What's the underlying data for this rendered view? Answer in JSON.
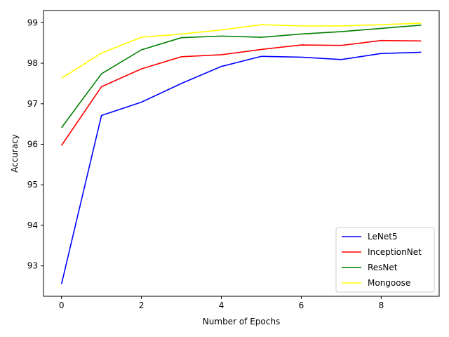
{
  "chart_data": {
    "type": "line",
    "title": "",
    "xlabel": "Number of Epochs",
    "ylabel": "Accuracy",
    "xlim": [
      -0.45,
      9.45
    ],
    "ylim": [
      92.25,
      99.3
    ],
    "xticks": [
      0,
      2,
      4,
      6,
      8
    ],
    "yticks": [
      93,
      94,
      95,
      96,
      97,
      98,
      99
    ],
    "grid": false,
    "legend_position": "lower-right",
    "x": [
      0,
      1,
      2,
      3,
      4,
      5,
      6,
      7,
      8,
      9
    ],
    "series": [
      {
        "name": "LeNet5",
        "color": "#0000ff",
        "values": [
          92.55,
          96.71,
          97.04,
          97.5,
          97.92,
          98.17,
          98.15,
          98.09,
          98.24,
          98.27
        ]
      },
      {
        "name": "InceptionNet",
        "color": "#ff0000",
        "values": [
          95.97,
          97.42,
          97.86,
          98.16,
          98.21,
          98.34,
          98.45,
          98.44,
          98.56,
          98.55
        ]
      },
      {
        "name": "ResNet",
        "color": "#008000",
        "values": [
          96.41,
          97.74,
          98.33,
          98.63,
          98.67,
          98.64,
          98.72,
          98.78,
          98.86,
          98.94
        ]
      },
      {
        "name": "Mongoose",
        "color": "#ffff00",
        "values": [
          97.63,
          98.25,
          98.64,
          98.72,
          98.82,
          98.95,
          98.92,
          98.92,
          98.95,
          98.99
        ]
      }
    ]
  }
}
